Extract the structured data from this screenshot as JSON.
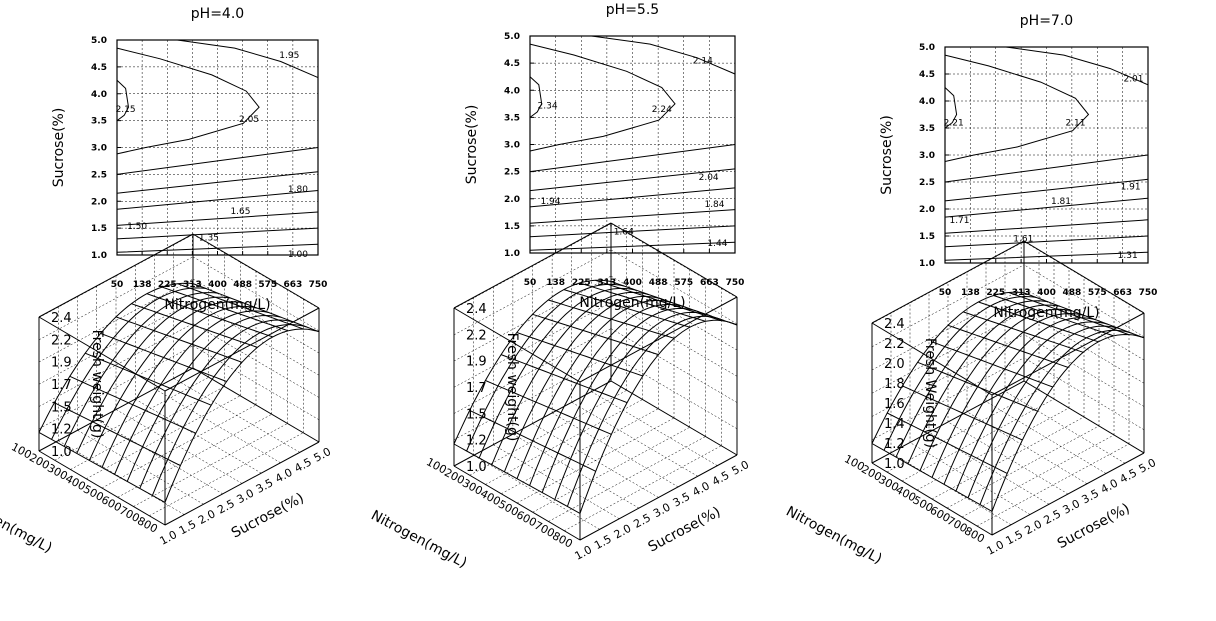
{
  "chart_data": [
    {
      "type": "contour",
      "title": "pH=4.0",
      "xlabel": "Nitrogen(mg/L)",
      "ylabel": "Sucrose(%)",
      "x_ticks": [
        "50",
        "138",
        "225",
        "313",
        "400",
        "488",
        "575",
        "663",
        "750"
      ],
      "y_ticks": [
        "1.0",
        "1.5",
        "2.0",
        "2.5",
        "3.0",
        "3.5",
        "4.0",
        "4.5",
        "5.0"
      ],
      "xlim": [
        50,
        750
      ],
      "ylim": [
        1.0,
        5.0
      ],
      "grid": true,
      "contour_labels": [
        {
          "text": "2.15",
          "x": 80,
          "y": 3.72
        },
        {
          "text": "2.05",
          "x": 510,
          "y": 3.53
        },
        {
          "text": "1.95",
          "x": 650,
          "y": 4.72
        },
        {
          "text": "1.80",
          "x": 680,
          "y": 2.23
        },
        {
          "text": "1.65",
          "x": 480,
          "y": 1.82
        },
        {
          "text": "1.50",
          "x": 120,
          "y": 1.54
        },
        {
          "text": "1.35",
          "x": 370,
          "y": 1.33
        },
        {
          "text": "1.00",
          "x": 680,
          "y": 1.02
        }
      ]
    },
    {
      "type": "contour",
      "title": "pH=5.5",
      "xlabel": "Nitrogen(mg/L)",
      "ylabel": "Sucrose(%)",
      "x_ticks": [
        "50",
        "138",
        "225",
        "313",
        "400",
        "488",
        "575",
        "663",
        "750"
      ],
      "y_ticks": [
        "1.0",
        "1.5",
        "2.0",
        "2.5",
        "3.0",
        "3.5",
        "4.0",
        "4.5",
        "5.0"
      ],
      "xlim": [
        50,
        750
      ],
      "ylim": [
        1.0,
        5.0
      ],
      "grid": true,
      "contour_labels": [
        {
          "text": "2.34",
          "x": 110,
          "y": 3.72
        },
        {
          "text": "2.24",
          "x": 500,
          "y": 3.65
        },
        {
          "text": "2.14",
          "x": 640,
          "y": 4.55
        },
        {
          "text": "2.04",
          "x": 660,
          "y": 2.4
        },
        {
          "text": "1.94",
          "x": 120,
          "y": 1.96
        },
        {
          "text": "1.84",
          "x": 680,
          "y": 1.9
        },
        {
          "text": "1.64",
          "x": 370,
          "y": 1.4
        },
        {
          "text": "1.44",
          "x": 690,
          "y": 1.18
        }
      ]
    },
    {
      "type": "contour",
      "title": "pH=7.0",
      "xlabel": "Nitrogen(mg/L)",
      "ylabel": "Sucrose(%)",
      "x_ticks": [
        "50",
        "138",
        "225",
        "313",
        "400",
        "488",
        "575",
        "663",
        "750"
      ],
      "y_ticks": [
        "1.0",
        "1.5",
        "2.0",
        "2.5",
        "3.0",
        "3.5",
        "4.0",
        "4.5",
        "5.0"
      ],
      "xlim": [
        50,
        750
      ],
      "ylim": [
        1.0,
        5.0
      ],
      "grid": true,
      "contour_labels": [
        {
          "text": "2.21",
          "x": 80,
          "y": 3.6
        },
        {
          "text": "2.11",
          "x": 500,
          "y": 3.6
        },
        {
          "text": "2.01",
          "x": 700,
          "y": 4.42
        },
        {
          "text": "1.91",
          "x": 690,
          "y": 2.42
        },
        {
          "text": "1.81",
          "x": 450,
          "y": 2.15
        },
        {
          "text": "1.71",
          "x": 100,
          "y": 1.8
        },
        {
          "text": "1.61",
          "x": 320,
          "y": 1.45
        },
        {
          "text": "1.31",
          "x": 680,
          "y": 1.15
        }
      ]
    },
    {
      "type": "surface",
      "xlabel": "Nitrogen(mg/L)",
      "ylabel": "Sucrose(%)",
      "zlabel": "Fresh weight(g)",
      "x_ticks": [
        "100",
        "200",
        "300",
        "400",
        "500",
        "600",
        "700",
        "800"
      ],
      "y_ticks": [
        "1.0",
        "1.5",
        "2.0",
        "2.5",
        "3.0",
        "3.5",
        "4.0",
        "4.5",
        "5.0"
      ],
      "z_ticks": [
        "1.0",
        "1.2",
        "1.5",
        "1.7",
        "1.9",
        "2.2",
        "2.4"
      ],
      "zlim": [
        1.0,
        2.4
      ]
    },
    {
      "type": "surface",
      "xlabel": "Nitrogen(mg/L)",
      "ylabel": "Sucrose(%)",
      "zlabel": "Fresh weight(g)",
      "x_ticks": [
        "100",
        "200",
        "300",
        "400",
        "500",
        "600",
        "700",
        "800"
      ],
      "y_ticks": [
        "1.0",
        "1.5",
        "2.0",
        "2.5",
        "3.0",
        "3.5",
        "4.0",
        "4.5",
        "5.0"
      ],
      "z_ticks": [
        "1.0",
        "1.2",
        "1.5",
        "1.7",
        "1.9",
        "2.2",
        "2.4"
      ],
      "zlim": [
        1.0,
        2.4
      ]
    },
    {
      "type": "surface",
      "xlabel": "Nitrogen(mg/L)",
      "ylabel": "Sucrose(%)",
      "zlabel": "Fresh Weight(g)",
      "x_ticks": [
        "100",
        "200",
        "300",
        "400",
        "500",
        "600",
        "700",
        "800"
      ],
      "y_ticks": [
        "1.0",
        "1.5",
        "2.0",
        "2.5",
        "3.0",
        "3.5",
        "4.0",
        "4.5",
        "5.0"
      ],
      "z_ticks": [
        "1.0",
        "1.2",
        "1.4",
        "1.6",
        "1.8",
        "2.0",
        "2.2",
        "2.4"
      ],
      "zlim": [
        1.0,
        2.4
      ]
    }
  ]
}
